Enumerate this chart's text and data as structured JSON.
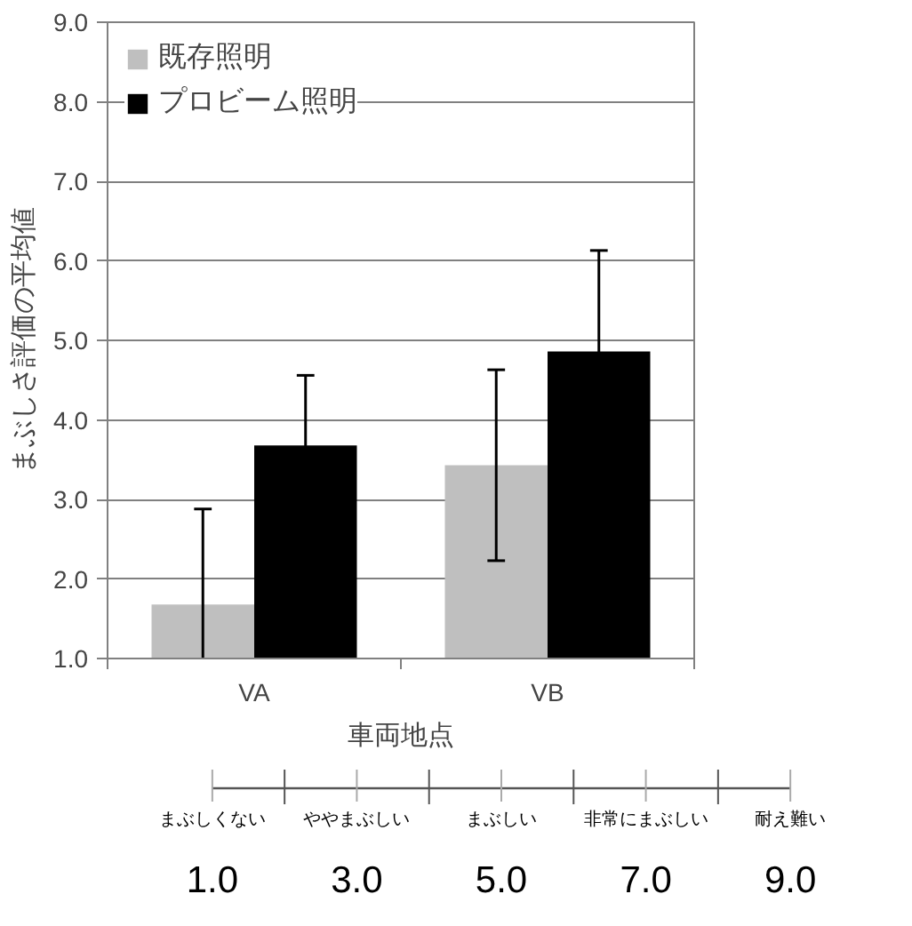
{
  "chart_data": {
    "type": "bar",
    "ylabel": "まぶしさ評価の平均値",
    "xlabel": "車両地点",
    "categories": [
      "VA",
      "VB"
    ],
    "series": [
      {
        "name": "既存照明",
        "color": "#bfbfbf",
        "values": [
          1.68,
          3.43
        ],
        "errors": [
          [
            1.0,
            2.88
          ],
          1.2
        ]
      },
      {
        "name": "プロビーム照明",
        "color": "#000000",
        "values": [
          3.68,
          4.86
        ],
        "errors": [
          0.88,
          1.27
        ]
      }
    ],
    "ylim": [
      1.0,
      9.0
    ],
    "yticks": [
      {
        "value": 1,
        "label": "1.0"
      },
      {
        "value": 2,
        "label": "2.0"
      },
      {
        "value": 3,
        "label": "3.0"
      },
      {
        "value": 4,
        "label": "4.0"
      },
      {
        "value": 5,
        "label": "5.0"
      },
      {
        "value": 6,
        "label": "6.0"
      },
      {
        "value": 7,
        "label": "7.0"
      },
      {
        "value": 8,
        "label": "8.0"
      },
      {
        "value": 9,
        "label": "9.0"
      }
    ],
    "grid": "y",
    "legend": "top left",
    "annotations": [
      "まぶしくない",
      "ややまぶしい",
      "まぶしい",
      "非常にまぶしい",
      "耐え難い",
      "1.0",
      "3.0",
      "5.0",
      "7.0",
      "9.0"
    ]
  }
}
